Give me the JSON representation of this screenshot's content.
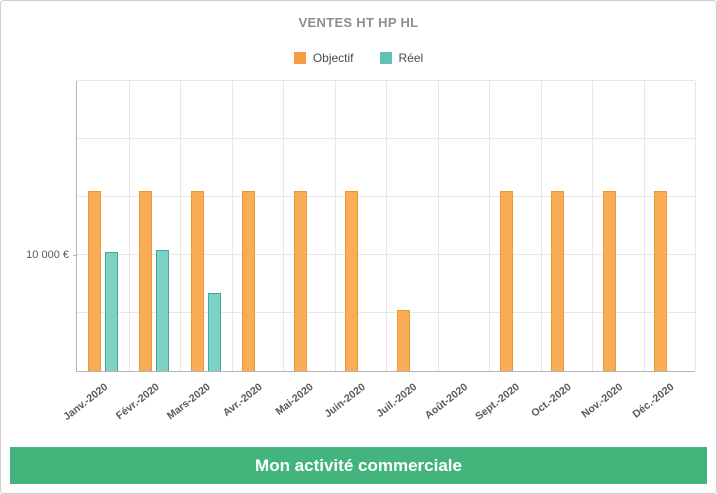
{
  "page": {
    "title": "VENTES HT HP HL",
    "footer_label": "Mon activité commerciale"
  },
  "legend": {
    "items": [
      {
        "label": "Objectif",
        "color": "#f59d41"
      },
      {
        "label": "Réel",
        "color": "#5fc2b5"
      }
    ]
  },
  "colors": {
    "footer_bg": "#43b47c",
    "title_text": "#8e8e8e",
    "axis_line": "#b3b3b3",
    "gridline": "#e7e7e7"
  },
  "chart_data": {
    "type": "bar",
    "title": "VENTES HT HP HL",
    "categories": [
      "Janv.-2020",
      "Févr.-2020",
      "Mars-2020",
      "Avr.-2020",
      "Mai-2020",
      "Juin-2020",
      "Juil.-2020",
      "Août-2020",
      "Sept.-2020",
      "Oct.-2020",
      "Nov.-2020",
      "Déc.-2020"
    ],
    "series": [
      {
        "name": "Objectif",
        "fill": "#f8ad56",
        "stroke": "#ee962f",
        "values": [
          15500,
          15500,
          15500,
          15500,
          15500,
          15500,
          5300,
          0,
          15500,
          15500,
          15500,
          15500
        ]
      },
      {
        "name": "Réel",
        "fill": "#7fd0c5",
        "stroke": "#3eab9e",
        "values": [
          10300,
          10400,
          6700,
          0,
          0,
          0,
          0,
          0,
          0,
          0,
          0,
          0
        ]
      }
    ],
    "xlabel": "",
    "ylabel": "",
    "ylim": [
      0,
      25000
    ],
    "ytick_step": 5000,
    "ytick_labels": [
      {
        "value": 10000,
        "label": "10 000 €"
      }
    ],
    "grid": true,
    "legend_position": "top"
  }
}
